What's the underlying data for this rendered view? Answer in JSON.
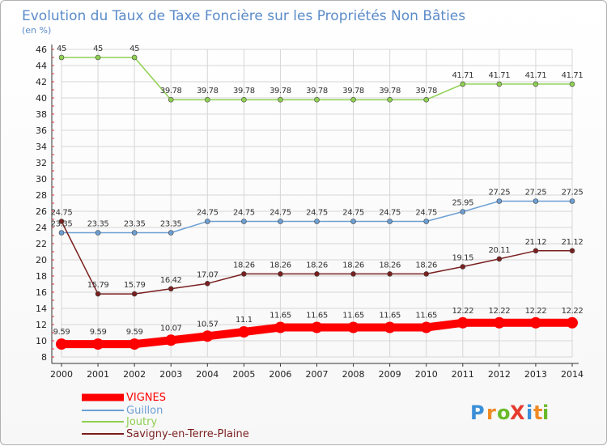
{
  "chart_data": {
    "type": "line",
    "title": "Evolution du Taux de Taxe Foncière sur les Propriétés Non Bâties",
    "subtitle": "(en %)",
    "xlabel": "",
    "ylabel": "",
    "x": [
      "2000",
      "2001",
      "2002",
      "2003",
      "2004",
      "2005",
      "2006",
      "2007",
      "2008",
      "2009",
      "2010",
      "2011",
      "2012",
      "2013",
      "2014"
    ],
    "ylim": [
      8,
      46
    ],
    "yticks": [
      8,
      10,
      12,
      14,
      16,
      18,
      20,
      22,
      24,
      26,
      28,
      30,
      32,
      34,
      36,
      38,
      40,
      42,
      44,
      46
    ],
    "grid": true,
    "legend_position": "bottom-left",
    "series": [
      {
        "name": "VIGNES",
        "color": "#ff0000",
        "values": [
          9.59,
          9.59,
          9.59,
          10.07,
          10.57,
          11.1,
          11.65,
          11.65,
          11.65,
          11.65,
          11.65,
          12.22,
          12.22,
          12.22,
          12.22
        ],
        "labels": [
          "9.59",
          "9.59",
          "9.59",
          "10.07",
          "10.57",
          "11.1",
          "11.65",
          "11.65",
          "11.65",
          "11.65",
          "11.65",
          "12.22",
          "12.22",
          "12.22",
          "12.22"
        ]
      },
      {
        "name": "Guillon",
        "color": "#6d9fd4",
        "values": [
          23.35,
          23.35,
          23.35,
          23.35,
          24.75,
          24.75,
          24.75,
          24.75,
          24.75,
          24.75,
          24.75,
          25.95,
          27.25,
          27.25,
          27.25
        ],
        "labels": [
          "23.35",
          "23.35",
          "23.35",
          "23.35",
          "24.75",
          "24.75",
          "24.75",
          "24.75",
          "24.75",
          "24.75",
          "24.75",
          "25.95",
          "27.25",
          "27.25",
          "27.25"
        ]
      },
      {
        "name": "Joutry",
        "color": "#8fd052",
        "values": [
          45,
          45,
          45,
          39.78,
          39.78,
          39.78,
          39.78,
          39.78,
          39.78,
          39.78,
          39.78,
          41.71,
          41.71,
          41.71,
          41.71
        ],
        "labels": [
          "45",
          "45",
          "45",
          "39.78",
          "39.78",
          "39.78",
          "39.78",
          "39.78",
          "39.78",
          "39.78",
          "39.78",
          "41.71",
          "41.71",
          "41.71",
          "41.71"
        ]
      },
      {
        "name": "Savigny-en-Terre-Plaine",
        "color": "#7a1f1f",
        "values": [
          24.75,
          15.79,
          15.79,
          16.42,
          17.07,
          18.26,
          18.26,
          18.26,
          18.26,
          18.26,
          18.26,
          19.15,
          20.11,
          21.12,
          21.12
        ],
        "labels": [
          "24.75",
          "15.79",
          "15.79",
          "16.42",
          "17.07",
          "18.26",
          "18.26",
          "18.26",
          "18.26",
          "18.26",
          "18.26",
          "19.15",
          "20.11",
          "21.12",
          "21.12"
        ]
      }
    ]
  },
  "logo": {
    "text": "ProXiti",
    "letters": [
      "P",
      "r",
      "o",
      "X",
      "i",
      "t",
      "i"
    ],
    "colors": [
      "#3a8fd8",
      "#f08a24",
      "#6aba2a",
      "#e63b2e",
      "#3a8fd8",
      "#f08a24",
      "#6aba2a"
    ]
  }
}
